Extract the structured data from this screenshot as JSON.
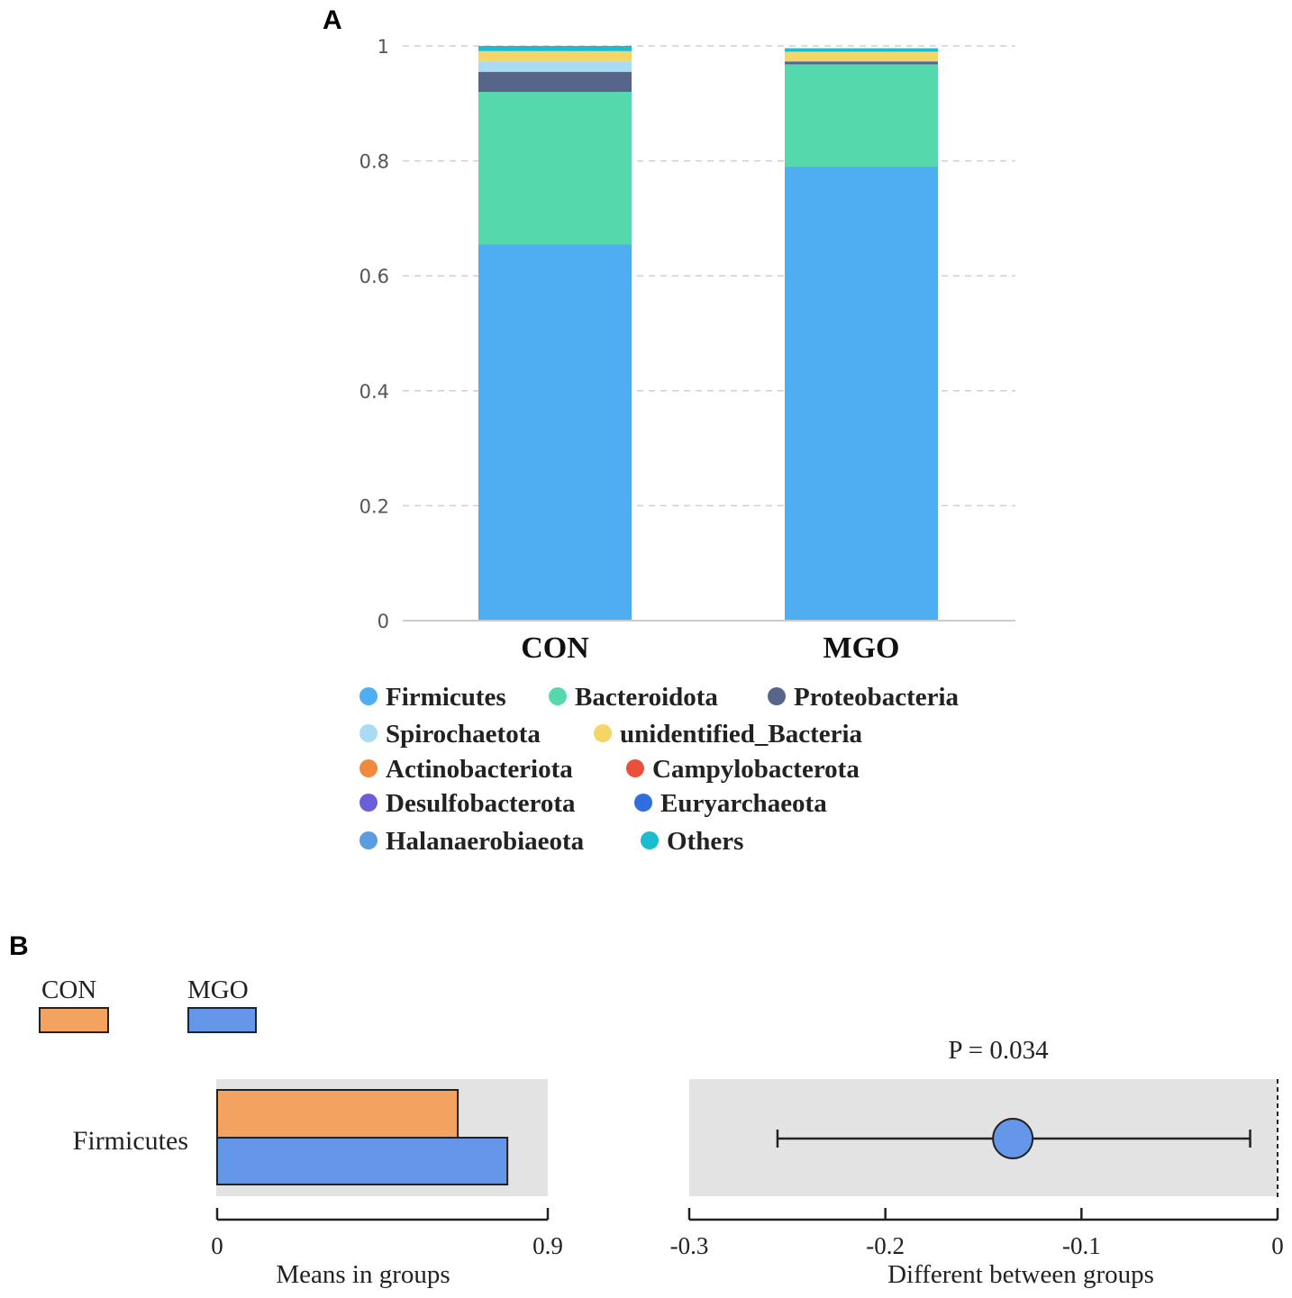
{
  "panel_labels": {
    "a": "A",
    "b": "B"
  },
  "chart_data": [
    {
      "type": "bar",
      "stacked": true,
      "panel": "A",
      "categories": [
        "CON",
        "MGO"
      ],
      "ylim": [
        0,
        1
      ],
      "yticks": [
        "0",
        "0.2",
        "0.4",
        "0.6",
        "0.8",
        "1"
      ],
      "grid": true,
      "series": [
        {
          "name": "Firmicutes",
          "color": "#4faef2",
          "values": [
            0.655,
            0.79
          ]
        },
        {
          "name": "Bacteroidota",
          "color": "#55d8ab",
          "values": [
            0.265,
            0.178
          ]
        },
        {
          "name": "Proteobacteria",
          "color": "#566589",
          "values": [
            0.035,
            0.005
          ]
        },
        {
          "name": "Spirochaetota",
          "color": "#a9dcf4",
          "values": [
            0.018,
            0.002
          ]
        },
        {
          "name": "unidentified_Bacteria",
          "color": "#f5d565",
          "values": [
            0.018,
            0.015
          ]
        },
        {
          "name": "Actinobacteriota",
          "color": "#f08a3c",
          "values": [
            0.0,
            0.0
          ]
        },
        {
          "name": "Campylobacterota",
          "color": "#e9513d",
          "values": [
            0.0,
            0.0
          ]
        },
        {
          "name": "Desulfobacterota",
          "color": "#6a5fd8",
          "values": [
            0.0,
            0.0
          ]
        },
        {
          "name": "Euryarchaeota",
          "color": "#2f6ee0",
          "values": [
            0.0,
            0.0
          ]
        },
        {
          "name": "Halanaerobiaeota",
          "color": "#5b9bdf",
          "values": [
            0.0,
            0.0
          ]
        },
        {
          "name": "Others",
          "color": "#1bbbd0",
          "values": [
            0.009,
            0.006
          ]
        }
      ]
    },
    {
      "type": "bar",
      "orientation": "horizontal",
      "panel": "B-left",
      "category": "Firmicutes",
      "xlim": [
        0,
        0.9
      ],
      "xticks": [
        "0",
        "0.9"
      ],
      "xlabel": "Means in groups",
      "series": [
        {
          "name": "CON",
          "color": "#f3a35f",
          "value": 0.655
        },
        {
          "name": "MGO",
          "color": "#6597e8",
          "value": 0.79
        }
      ]
    },
    {
      "type": "scatter",
      "panel": "B-right",
      "category": "Firmicutes",
      "annotation": "P = 0.034",
      "xlim": [
        -0.3,
        0
      ],
      "xticks": [
        "-0.3",
        "-0.2",
        "-0.1",
        "0"
      ],
      "xlabel": "Different between groups",
      "estimate": -0.135,
      "ci": [
        -0.255,
        -0.014
      ],
      "point_color": "#6597e8"
    }
  ]
}
